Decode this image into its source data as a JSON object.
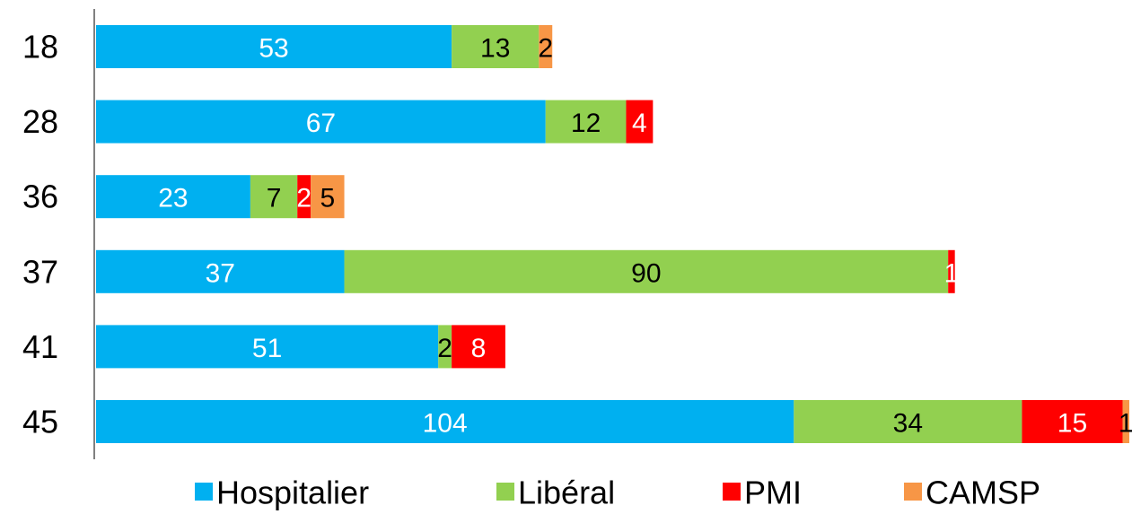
{
  "chart_data": {
    "type": "stacked-bar-horizontal",
    "categories": [
      "18",
      "28",
      "36",
      "37",
      "41",
      "45"
    ],
    "series": [
      {
        "name": "Hospitalier",
        "color": "#00b0f0",
        "label_color": "#ffffff",
        "values": [
          53,
          67,
          23,
          37,
          51,
          104
        ]
      },
      {
        "name": "Libéral",
        "color": "#92d050",
        "label_color": "#000000",
        "values": [
          13,
          12,
          7,
          90,
          2,
          34
        ]
      },
      {
        "name": "PMI",
        "color": "#ff0000",
        "label_color": "#ffffff",
        "values": [
          null,
          4,
          2,
          1,
          8,
          15
        ]
      },
      {
        "name": "CAMSP",
        "color": "#f79646",
        "label_color": "#000000",
        "values": [
          2,
          null,
          5,
          null,
          null,
          1
        ]
      }
    ],
    "legend": "bottom"
  }
}
